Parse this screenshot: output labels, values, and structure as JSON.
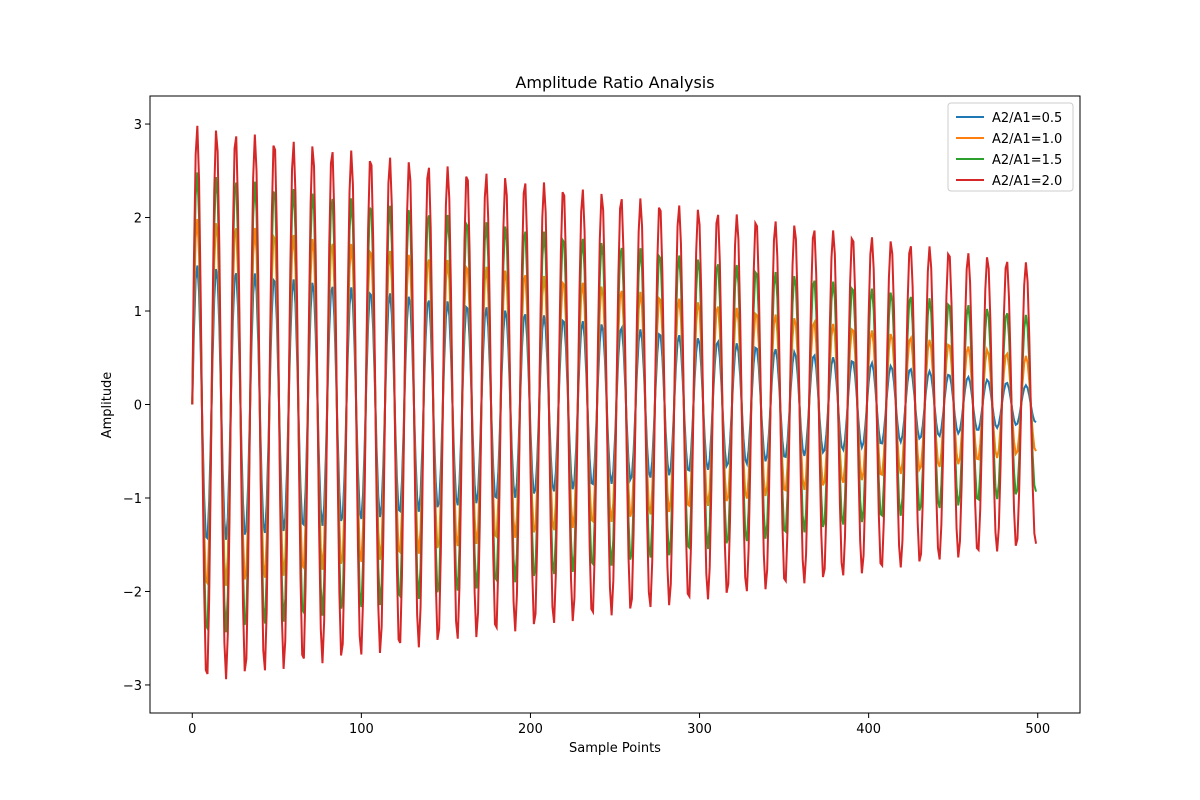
{
  "chart_data": {
    "type": "line",
    "title": "Amplitude Ratio Analysis",
    "xlabel": "Sample Points",
    "ylabel": "Amplitude",
    "xlim": [
      -25,
      525
    ],
    "ylim": [
      -3.3,
      3.3
    ],
    "xticks": [
      0,
      100,
      200,
      300,
      400,
      500
    ],
    "yticks": [
      -3,
      -2,
      -1,
      0,
      1,
      2,
      3
    ],
    "grid": false,
    "legend_position": "top-right",
    "samples": 500,
    "oscillation_period_samples": 11.4,
    "envelope_decay_per_sample": 0.001,
    "series": [
      {
        "name": "A2/A1=0.5",
        "color": "#1f77b4",
        "peak_amplitude": 1.5,
        "final_value": -0.02
      },
      {
        "name": "A2/A1=1.0",
        "color": "#ff7f0e",
        "peak_amplitude": 2.0,
        "final_value": 0.43
      },
      {
        "name": "A2/A1=1.5",
        "color": "#2ca02c",
        "peak_amplitude": 2.5,
        "final_value": 0.88
      },
      {
        "name": "A2/A1=2.0",
        "color": "#d62728",
        "peak_amplitude": 3.0,
        "final_value": 1.33
      }
    ]
  }
}
